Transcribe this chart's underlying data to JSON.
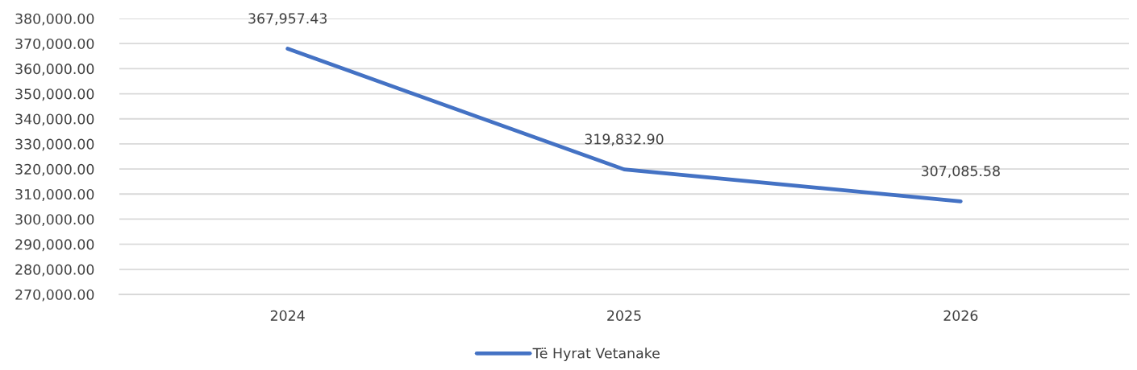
{
  "chart_data": {
    "type": "line",
    "categories": [
      "2024",
      "2025",
      "2026"
    ],
    "series": [
      {
        "name": "Të Hyrat Vetanake",
        "color": "#4472c4",
        "values": [
          367957.43,
          319832.9,
          307085.58
        ],
        "value_labels": [
          "367,957.43",
          "319,832.90",
          "307,085.58"
        ]
      }
    ],
    "ylim": [
      270000,
      380000
    ],
    "yticks": [
      {
        "value": 270000,
        "label": "270,000.00"
      },
      {
        "value": 280000,
        "label": "280,000.00"
      },
      {
        "value": 290000,
        "label": "290,000.00"
      },
      {
        "value": 300000,
        "label": "300,000.00"
      },
      {
        "value": 310000,
        "label": "310,000.00"
      },
      {
        "value": 320000,
        "label": "320,000.00"
      },
      {
        "value": 330000,
        "label": "330,000.00"
      },
      {
        "value": 340000,
        "label": "340,000.00"
      },
      {
        "value": 350000,
        "label": "350,000.00"
      },
      {
        "value": 360000,
        "label": "360,000.00"
      },
      {
        "value": 370000,
        "label": "370,000.00"
      },
      {
        "value": 380000,
        "label": "380,000.00"
      }
    ],
    "grid": "y",
    "legend": "bottom",
    "marker": "none",
    "line_style": "solid"
  }
}
